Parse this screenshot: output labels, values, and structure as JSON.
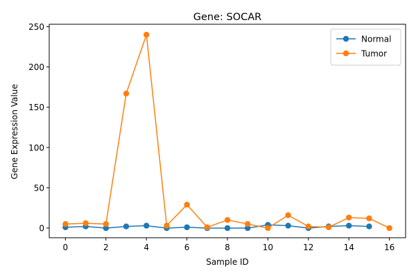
{
  "chart_data": {
    "type": "line",
    "title": "Gene: SOCAR",
    "xlabel": "Sample ID",
    "ylabel": "Gene Expression Value",
    "xlim": [
      -0.8,
      16.8
    ],
    "ylim": [
      -12,
      253
    ],
    "xticks": [
      0,
      2,
      4,
      6,
      8,
      10,
      12,
      14,
      16
    ],
    "yticks": [
      0,
      50,
      100,
      150,
      200,
      250
    ],
    "legend_position": "top-right",
    "grid": false,
    "series": [
      {
        "name": "Normal",
        "color": "#1f77b4",
        "x": [
          0,
          1,
          2,
          3,
          4,
          5,
          6,
          7,
          8,
          9,
          10,
          11,
          12,
          13,
          14,
          15
        ],
        "y": [
          1,
          2,
          0,
          2,
          3,
          0,
          1,
          0,
          0,
          0,
          4,
          3,
          0,
          2,
          3,
          2
        ]
      },
      {
        "name": "Tumor",
        "color": "#ff7f0e",
        "x": [
          0,
          1,
          2,
          3,
          4,
          5,
          6,
          7,
          8,
          9,
          10,
          11,
          12,
          13,
          14,
          15,
          16
        ],
        "y": [
          5,
          6,
          5,
          167,
          240,
          3,
          29,
          1,
          10,
          5,
          0,
          16,
          2,
          1,
          13,
          12,
          0
        ]
      }
    ]
  }
}
